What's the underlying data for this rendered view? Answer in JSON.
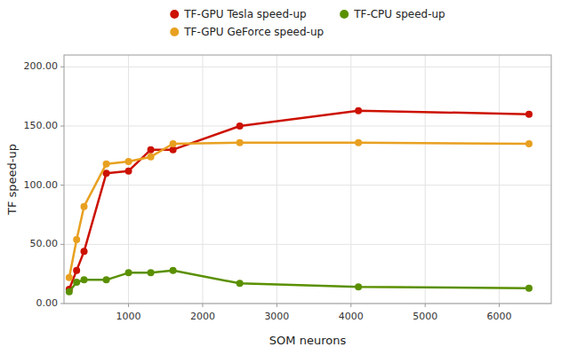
{
  "chart_data": {
    "type": "line",
    "xlabel": "SOM neurons",
    "ylabel": "TF speed-up",
    "x": [
      200,
      300,
      400,
      700,
      1000,
      1300,
      1600,
      2500,
      4100,
      6400
    ],
    "series": [
      {
        "name": "TF-GPU Tesla speed-up",
        "color": "#cc1100",
        "values": [
          12,
          28,
          44,
          110,
          112,
          130,
          130,
          150,
          163,
          160
        ]
      },
      {
        "name": "TF-GPU GeForce speed-up",
        "color": "#e8a020",
        "values": [
          22,
          54,
          82,
          118,
          120,
          124,
          135,
          136,
          136,
          135
        ]
      },
      {
        "name": "TF-CPU speed-up",
        "color": "#5a9000",
        "values": [
          10,
          18,
          20,
          20,
          26,
          26,
          28,
          17,
          14,
          13
        ]
      }
    ],
    "xlim": [
      130,
      6700
    ],
    "ylim": [
      0.0,
      210.0
    ],
    "xticks": [
      1000,
      2000,
      3000,
      4000,
      5000,
      6000
    ],
    "yticks": [
      {
        "value": 0.0,
        "label": "0.00"
      },
      {
        "value": 50.0,
        "label": "50.00"
      },
      {
        "value": 100.0,
        "label": "100.00"
      },
      {
        "value": 150.0,
        "label": "150.00"
      },
      {
        "value": 200.0,
        "label": "200.00"
      }
    ],
    "grid": true,
    "marker": "circle",
    "legend": "top"
  }
}
